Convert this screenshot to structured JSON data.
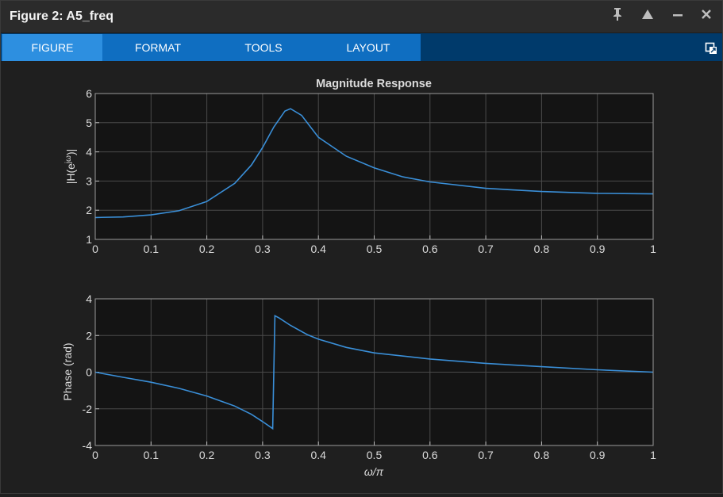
{
  "window": {
    "title": "Figure 2: A5_freq",
    "controls": [
      "pin-icon",
      "up-arrow-icon",
      "minimize-icon",
      "close-icon"
    ]
  },
  "ribbon": {
    "tabs": [
      {
        "label": "FIGURE",
        "active": true
      },
      {
        "label": "FORMAT",
        "active": false
      },
      {
        "label": "TOOLS",
        "active": false
      },
      {
        "label": "LAYOUT",
        "active": false
      }
    ],
    "undock_icon": "undock-icon"
  },
  "colors": {
    "line": "#3a8fd8",
    "axes_bg": "#141414",
    "grid": "#4a4a4a",
    "text": "#dcdcdc"
  },
  "chart_data": [
    {
      "type": "line",
      "title": "Magnitude Response",
      "xlabel": "",
      "ylabel_parts": [
        "|H(e",
        "jω",
        ")|"
      ],
      "xlim": [
        0,
        1
      ],
      "ylim": [
        1,
        6
      ],
      "xticks": [
        "0",
        "0.1",
        "0.2",
        "0.3",
        "0.4",
        "0.5",
        "0.6",
        "0.7",
        "0.8",
        "0.9",
        "1"
      ],
      "yticks": [
        "1",
        "2",
        "3",
        "4",
        "5",
        "6"
      ],
      "grid": true,
      "series": [
        {
          "x": [
            0,
            0.05,
            0.1,
            0.15,
            0.2,
            0.25,
            0.28,
            0.3,
            0.32,
            0.34,
            0.35,
            0.37,
            0.4,
            0.45,
            0.5,
            0.55,
            0.6,
            0.7,
            0.8,
            0.9,
            1.0
          ],
          "y": [
            1.75,
            1.77,
            1.84,
            1.98,
            2.3,
            2.92,
            3.55,
            4.15,
            4.85,
            5.4,
            5.48,
            5.25,
            4.5,
            3.85,
            3.45,
            3.15,
            2.97,
            2.75,
            2.64,
            2.58,
            2.56
          ]
        }
      ]
    },
    {
      "type": "line",
      "title": "",
      "xlabel": "ω/π",
      "ylabel": "Phase (rad)",
      "xlim": [
        0,
        1
      ],
      "ylim": [
        -4,
        4
      ],
      "xticks": [
        "0",
        "0.1",
        "0.2",
        "0.3",
        "0.4",
        "0.5",
        "0.6",
        "0.7",
        "0.8",
        "0.9",
        "1"
      ],
      "yticks": [
        "-4",
        "-2",
        "0",
        "2",
        "4"
      ],
      "grid": true,
      "series": [
        {
          "x": [
            0,
            0.05,
            0.1,
            0.15,
            0.2,
            0.25,
            0.28,
            0.3,
            0.318,
            0.322,
            0.33,
            0.35,
            0.38,
            0.4,
            0.45,
            0.5,
            0.6,
            0.7,
            0.8,
            0.9,
            1.0
          ],
          "y": [
            0,
            -0.28,
            -0.55,
            -0.88,
            -1.3,
            -1.85,
            -2.3,
            -2.7,
            -3.08,
            3.08,
            2.95,
            2.55,
            2.05,
            1.8,
            1.35,
            1.05,
            0.72,
            0.48,
            0.3,
            0.13,
            0.0
          ]
        }
      ]
    }
  ]
}
